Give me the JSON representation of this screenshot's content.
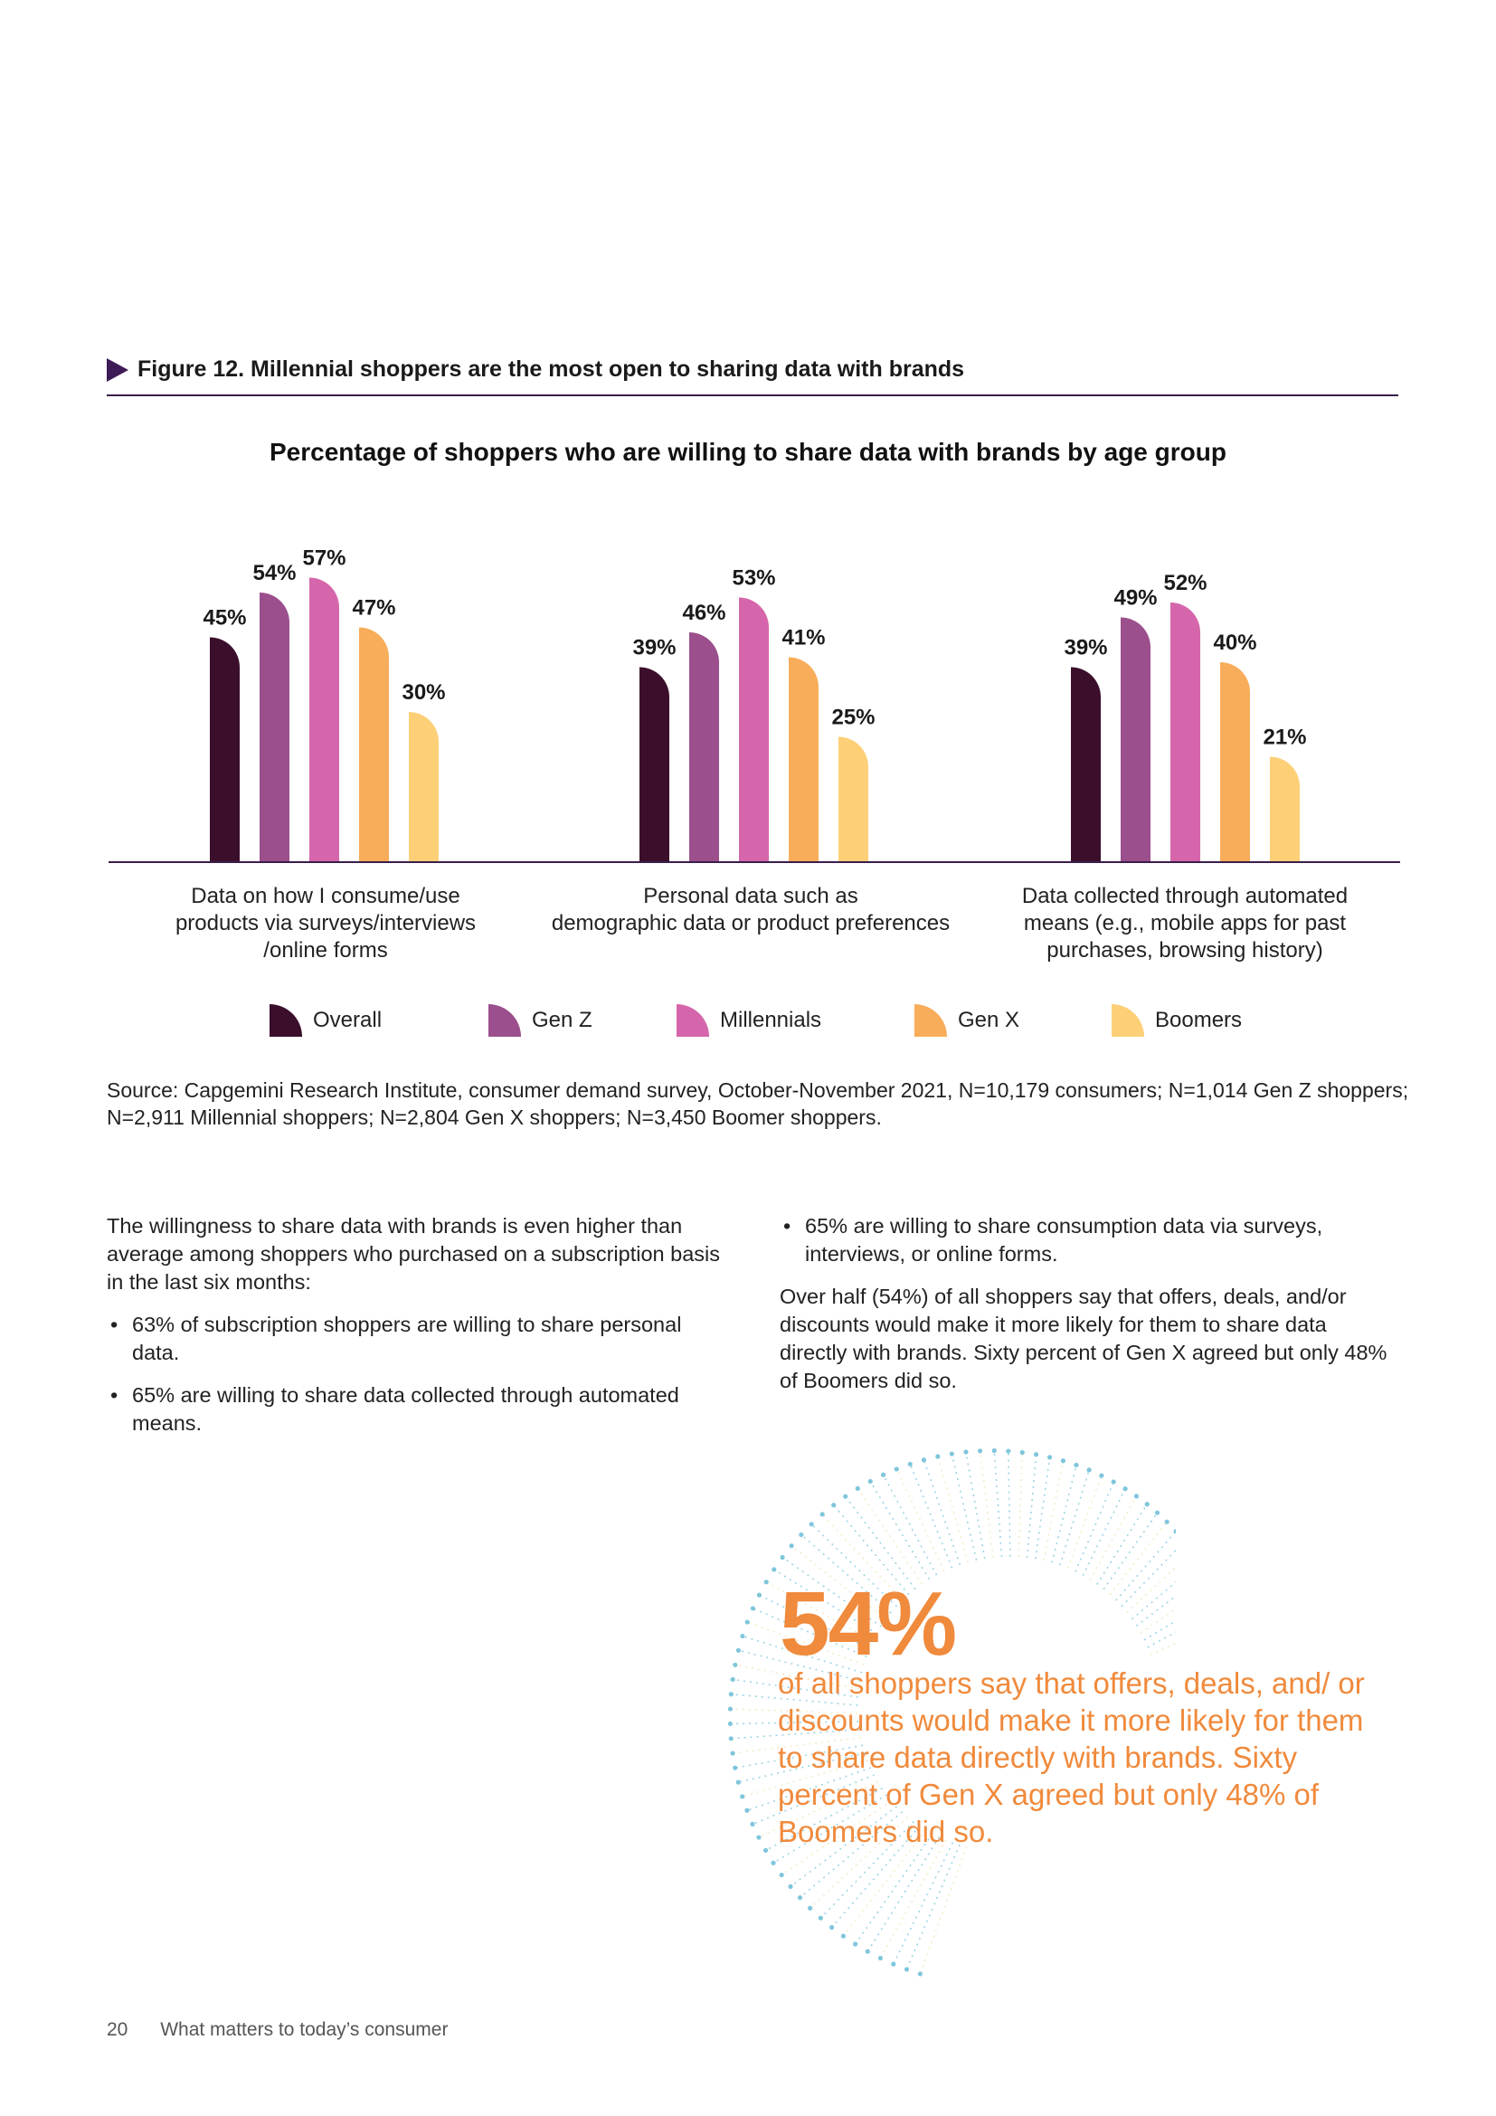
{
  "figure": {
    "title": "Figure 12. Millennial shoppers are the most open to sharing data with brands"
  },
  "chart_data": {
    "type": "bar",
    "title": "Percentage of shoppers who are willing to share data with brands by age group",
    "categories": [
      "Data on how I consume/use\nproducts via surveys/interviews\n/online forms",
      "Personal data such as\ndemographic data or product preferences",
      "Data collected through automated\nmeans (e.g., mobile apps for past\npurchases, browsing history)"
    ],
    "series": [
      {
        "name": "Overall",
        "color": "#3b0f2c",
        "values": [
          45,
          39,
          39
        ]
      },
      {
        "name": "Gen Z",
        "color": "#9b4f8c",
        "values": [
          54,
          46,
          49
        ]
      },
      {
        "name": "Millennials",
        "color": "#d566ab",
        "values": [
          57,
          53,
          52
        ]
      },
      {
        "name": "Gen X",
        "color": "#f8ad5a",
        "values": [
          47,
          41,
          40
        ]
      },
      {
        "name": "Boomers",
        "color": "#fdd078",
        "values": [
          30,
          25,
          21
        ]
      }
    ],
    "value_suffix": "%",
    "ylim": [
      0,
      60
    ],
    "legend": "bottom",
    "grid": false
  },
  "source": "Source: Capgemini Research Institute, consumer demand survey, October-November 2021, N=10,179 consumers; N=1,014 Gen Z shoppers; N=2,911 Millennial shoppers; N=2,804 Gen X shoppers; N=3,450 Boomer shoppers.",
  "body": {
    "left": {
      "intro": "The willingness to share data with brands is even higher than average among shoppers who purchased on a subscription basis in the last six months:",
      "bullets": [
        "63% of subscription shoppers are willing to share personal data.",
        "65% are willing to share data collected through automated means."
      ]
    },
    "right": {
      "bullets": [
        "65% are willing to share consumption data via surveys, interviews, or online forms."
      ],
      "paragraph": "Over half (54%) of all shoppers say that offers, deals, and/or discounts would make it more likely for them to share data directly with brands. Sixty percent of Gen X agreed but only 48% of Boomers did so."
    }
  },
  "callout": {
    "value": "54%",
    "text": " of all shoppers say that offers, deals, and/ or discounts would make it more likely for them to share data directly with brands. Sixty percent of Gen X agreed but only 48% of Boomers did so."
  },
  "footer": {
    "page_number": "20",
    "title": "What matters to today’s consumer"
  },
  "colors": {
    "accent_purple": "#3d1b57",
    "callout_orange": "#f08a3c",
    "burst_blue": "#7fc6dc",
    "burst_cream": "#f3e3b8"
  }
}
